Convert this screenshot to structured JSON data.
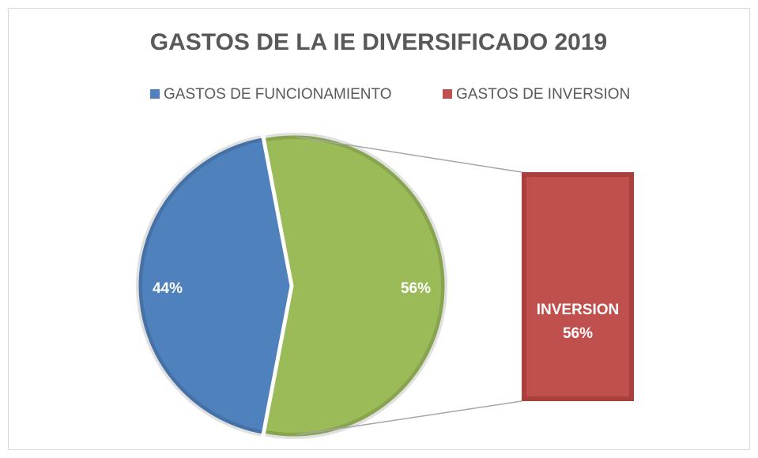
{
  "chart_data": {
    "type": "bar-of-pie",
    "title": "GASTOS DE LA IE DIVERSIFICADO 2019",
    "categories": [
      "GASTOS DE FUNCIONAMIENTO",
      "GASTOS DE INVERSION"
    ],
    "values": [
      44,
      56
    ],
    "value_labels": [
      "44%",
      "56%"
    ],
    "colors": [
      "#4f81bd",
      "#c0504d"
    ],
    "other": {
      "value": 56,
      "label": "56%",
      "color": "#9bbb59"
    },
    "bar_label": "INVERSION",
    "legend": "top"
  }
}
